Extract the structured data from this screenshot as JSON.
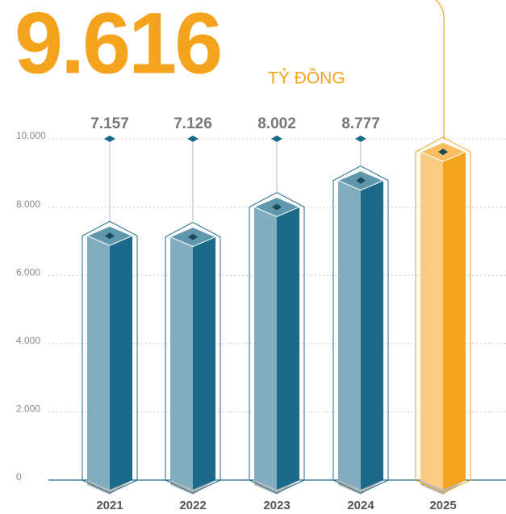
{
  "chart_data": {
    "type": "bar3d",
    "unit": "TỶ ĐỒNG",
    "categories": [
      "2021",
      "2022",
      "2023",
      "2024",
      "2025"
    ],
    "values": [
      7157,
      7126,
      8002,
      8777,
      9616
    ],
    "value_labels": [
      "7.157",
      "7.126",
      "8.002",
      "8.777",
      "9.616"
    ],
    "colors": [
      "#1b6a8a",
      "#1b6a8a",
      "#1b6a8a",
      "#1b6a8a",
      "#f5a21d"
    ],
    "ylim": [
      0,
      10000
    ],
    "yticks": [
      {
        "value": 0,
        "label": "0"
      },
      {
        "value": 2000,
        "label": "2.000"
      },
      {
        "value": 4000,
        "label": "4.000"
      },
      {
        "value": 6000,
        "label": "6.000"
      },
      {
        "value": 8000,
        "label": "8.000"
      },
      {
        "value": 10000,
        "label": "10.000"
      }
    ],
    "grid": true
  }
}
